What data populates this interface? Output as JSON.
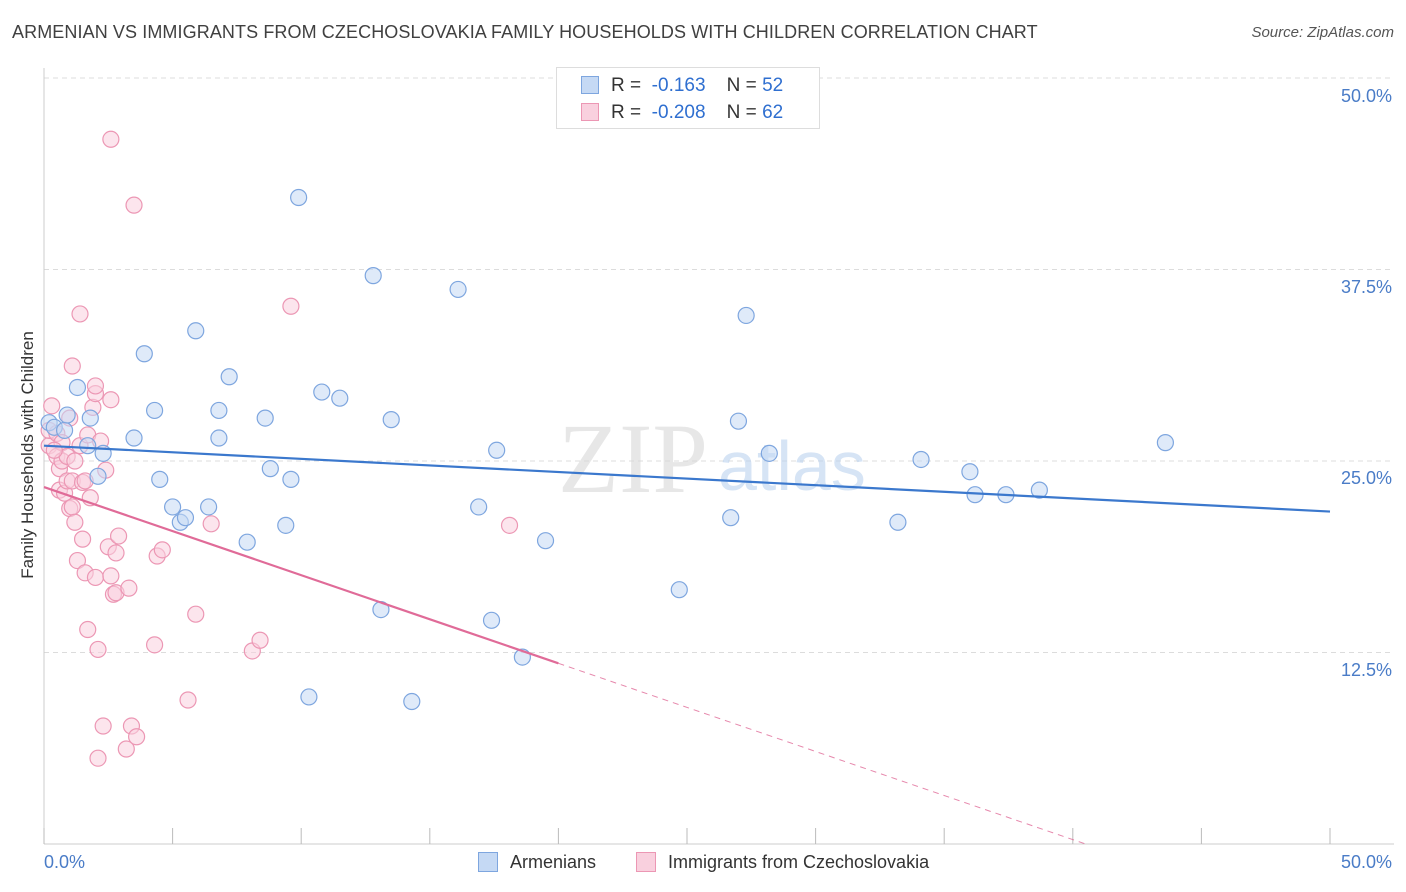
{
  "title": "ARMENIAN VS IMMIGRANTS FROM CZECHOSLOVAKIA FAMILY HOUSEHOLDS WITH CHILDREN CORRELATION CHART",
  "source": "Source: ZipAtlas.com",
  "watermark": {
    "zip": "ZIP",
    "atlas": "atlas"
  },
  "colors": {
    "blue_fill": "#c5d9f4",
    "blue_stroke": "#7ea6df",
    "blue_line": "#3b78cd",
    "pink_fill": "#f9d0de",
    "pink_stroke": "#ec97b4",
    "pink_line": "#e06b98",
    "tick_text": "#4a7cc7",
    "grid": "#dcdcdc"
  },
  "stats": [
    {
      "r_label": "R =",
      "r_value": "-0.163",
      "n_label": "N =",
      "n_value": "52"
    },
    {
      "r_label": "R =",
      "r_value": "-0.208",
      "n_label": "N =",
      "n_value": "62"
    }
  ],
  "legend": [
    "Armenians",
    "Immigrants from Czechoslovakia"
  ],
  "chart_data": {
    "type": "scatter",
    "title": "ARMENIAN VS IMMIGRANTS FROM CZECHOSLOVAKIA FAMILY HOUSEHOLDS WITH CHILDREN CORRELATION CHART",
    "xlabel": "",
    "ylabel": "Family Households with Children",
    "xlim": [
      0,
      50
    ],
    "ylim": [
      0,
      50
    ],
    "x_tick_labels": {
      "min": "0.0%",
      "max": "50.0%"
    },
    "y_ticks": [
      {
        "value": 12.5,
        "label": "12.5%"
      },
      {
        "value": 25.0,
        "label": "25.0%"
      },
      {
        "value": 37.5,
        "label": "37.5%"
      },
      {
        "value": 50.0,
        "label": "50.0%"
      }
    ],
    "grid": true,
    "legend_position": "bottom",
    "series": [
      {
        "name": "Armenians",
        "r": -0.163,
        "n": 52,
        "trend": {
          "x0": 0,
          "y0": 26.0,
          "x1": 50,
          "y1": 21.7,
          "solid_until": 50
        },
        "points": [
          [
            0.2,
            27.5
          ],
          [
            0.4,
            27.2
          ],
          [
            0.8,
            27.0
          ],
          [
            0.9,
            28.0
          ],
          [
            1.3,
            29.8
          ],
          [
            1.7,
            26.0
          ],
          [
            1.8,
            27.8
          ],
          [
            2.1,
            24.0
          ],
          [
            2.3,
            25.5
          ],
          [
            3.5,
            26.5
          ],
          [
            3.9,
            32.0
          ],
          [
            4.3,
            28.3
          ],
          [
            4.5,
            23.8
          ],
          [
            5.0,
            22.0
          ],
          [
            5.3,
            21.0
          ],
          [
            5.5,
            21.3
          ],
          [
            5.9,
            33.5
          ],
          [
            6.4,
            22.0
          ],
          [
            6.8,
            26.5
          ],
          [
            6.8,
            28.3
          ],
          [
            7.2,
            30.5
          ],
          [
            7.9,
            19.7
          ],
          [
            8.6,
            27.8
          ],
          [
            8.8,
            24.5
          ],
          [
            9.4,
            20.8
          ],
          [
            9.6,
            23.8
          ],
          [
            9.9,
            42.2
          ],
          [
            10.3,
            9.6
          ],
          [
            10.8,
            29.5
          ],
          [
            11.5,
            29.1
          ],
          [
            12.8,
            37.1
          ],
          [
            13.1,
            15.3
          ],
          [
            13.5,
            27.7
          ],
          [
            14.3,
            9.3
          ],
          [
            16.1,
            36.2
          ],
          [
            16.9,
            22.0
          ],
          [
            17.4,
            14.6
          ],
          [
            17.6,
            25.7
          ],
          [
            18.6,
            12.2
          ],
          [
            19.5,
            19.8
          ],
          [
            24.7,
            16.6
          ],
          [
            26.7,
            21.3
          ],
          [
            27.0,
            27.6
          ],
          [
            27.3,
            34.5
          ],
          [
            28.2,
            25.5
          ],
          [
            33.2,
            21.0
          ],
          [
            34.1,
            25.1
          ],
          [
            36.0,
            24.3
          ],
          [
            36.2,
            22.8
          ],
          [
            37.4,
            22.8
          ],
          [
            38.7,
            23.1
          ],
          [
            43.6,
            26.2
          ]
        ]
      },
      {
        "name": "Immigrants from Czechoslovakia",
        "r": -0.208,
        "n": 62,
        "trend": {
          "x0": 0,
          "y0": 23.3,
          "x1": 40.5,
          "y1": 0.0,
          "solid_until": 20.0
        },
        "points": [
          [
            0.2,
            26.0
          ],
          [
            0.2,
            27.0
          ],
          [
            0.3,
            28.6
          ],
          [
            0.5,
            26.8
          ],
          [
            0.5,
            25.3
          ],
          [
            0.6,
            24.5
          ],
          [
            0.6,
            23.1
          ],
          [
            0.7,
            25.0
          ],
          [
            0.7,
            26.2
          ],
          [
            0.8,
            22.9
          ],
          [
            0.9,
            25.3
          ],
          [
            0.9,
            23.7
          ],
          [
            1.0,
            21.9
          ],
          [
            1.0,
            27.8
          ],
          [
            1.1,
            23.7
          ],
          [
            1.1,
            22.0
          ],
          [
            1.1,
            31.2
          ],
          [
            1.2,
            21.0
          ],
          [
            1.2,
            25.0
          ],
          [
            1.3,
            18.5
          ],
          [
            1.4,
            34.6
          ],
          [
            1.4,
            26.0
          ],
          [
            1.5,
            23.6
          ],
          [
            1.5,
            19.9
          ],
          [
            1.6,
            17.7
          ],
          [
            1.7,
            26.7
          ],
          [
            1.7,
            14.0
          ],
          [
            1.8,
            22.6
          ],
          [
            1.9,
            28.5
          ],
          [
            2.0,
            29.4
          ],
          [
            2.0,
            29.9
          ],
          [
            2.0,
            17.4
          ],
          [
            2.1,
            5.6
          ],
          [
            2.1,
            12.7
          ],
          [
            2.2,
            26.3
          ],
          [
            2.3,
            7.7
          ],
          [
            2.4,
            24.4
          ],
          [
            2.5,
            19.4
          ],
          [
            2.6,
            46.0
          ],
          [
            2.6,
            29.0
          ],
          [
            2.6,
            17.5
          ],
          [
            2.7,
            16.3
          ],
          [
            2.8,
            19.0
          ],
          [
            2.8,
            16.4
          ],
          [
            2.9,
            20.1
          ],
          [
            3.2,
            6.2
          ],
          [
            3.3,
            16.7
          ],
          [
            3.4,
            7.7
          ],
          [
            3.5,
            41.7
          ],
          [
            3.6,
            7.0
          ],
          [
            4.3,
            13.0
          ],
          [
            4.4,
            18.8
          ],
          [
            4.6,
            19.2
          ],
          [
            5.6,
            9.4
          ],
          [
            5.9,
            15.0
          ],
          [
            6.5,
            20.9
          ],
          [
            8.1,
            12.6
          ],
          [
            8.4,
            13.3
          ],
          [
            9.6,
            35.1
          ],
          [
            18.1,
            20.8
          ],
          [
            0.4,
            25.7
          ],
          [
            1.6,
            23.7
          ]
        ]
      }
    ]
  }
}
